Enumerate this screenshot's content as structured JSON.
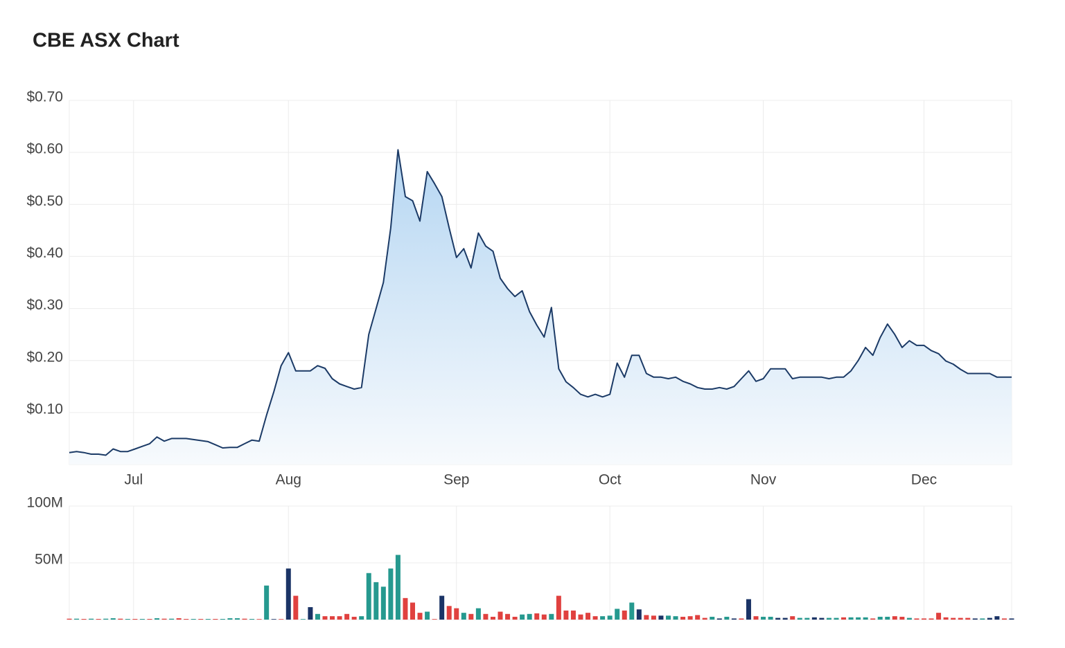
{
  "title": "CBE ASX Chart",
  "chart_data": [
    {
      "type": "area",
      "color": "#1b3a66",
      "x": [
        0,
        1,
        2,
        3,
        4,
        5,
        6,
        7,
        8,
        9,
        10,
        11,
        12,
        13,
        14,
        15,
        16,
        17,
        18,
        19,
        20,
        21,
        22,
        23,
        24,
        25,
        26,
        27,
        28,
        29,
        30,
        31,
        32,
        33,
        34,
        35,
        36,
        37,
        38,
        39,
        40,
        41,
        42,
        43,
        44,
        45,
        46,
        47,
        48,
        49,
        50,
        51,
        52,
        53,
        54,
        55,
        56,
        57,
        58,
        59,
        60,
        61,
        62,
        63,
        64,
        65,
        66,
        67,
        68,
        69,
        70,
        71,
        72,
        73,
        74,
        75,
        76,
        77,
        78,
        79,
        80,
        81,
        82,
        83,
        84,
        85,
        86,
        87,
        88,
        89,
        90,
        91,
        92,
        93,
        94,
        95,
        96,
        97,
        98,
        99,
        100,
        101,
        102,
        103,
        104,
        105,
        106,
        107,
        108,
        109,
        110,
        111,
        112,
        113,
        114,
        115,
        116,
        117,
        118,
        119,
        120,
        121,
        122,
        123,
        124,
        125,
        126,
        127,
        128,
        129
      ],
      "values": [
        0.023,
        0.025,
        0.023,
        0.02,
        0.02,
        0.018,
        0.03,
        0.025,
        0.025,
        0.03,
        0.035,
        0.04,
        0.053,
        0.045,
        0.05,
        0.05,
        0.05,
        0.048,
        0.046,
        0.044,
        0.038,
        0.032,
        0.033,
        0.033,
        0.04,
        0.047,
        0.045,
        0.095,
        0.14,
        0.19,
        0.215,
        0.18,
        0.18,
        0.18,
        0.19,
        0.185,
        0.165,
        0.155,
        0.15,
        0.145,
        0.148,
        0.25,
        0.3,
        0.35,
        0.455,
        0.605,
        0.515,
        0.507,
        0.468,
        0.563,
        0.54,
        0.515,
        0.455,
        0.398,
        0.415,
        0.378,
        0.445,
        0.42,
        0.41,
        0.358,
        0.338,
        0.323,
        0.334,
        0.294,
        0.268,
        0.245,
        0.302,
        0.184,
        0.159,
        0.148,
        0.135,
        0.13,
        0.135,
        0.13,
        0.135,
        0.195,
        0.168,
        0.21,
        0.21,
        0.175,
        0.168,
        0.168,
        0.165,
        0.168,
        0.16,
        0.155,
        0.148,
        0.145,
        0.145,
        0.148,
        0.145,
        0.15,
        0.165,
        0.18,
        0.16,
        0.165,
        0.184,
        0.184,
        0.184,
        0.165,
        0.168,
        0.168,
        0.168,
        0.168,
        0.165,
        0.168,
        0.168,
        0.18,
        0.2,
        0.225,
        0.21,
        0.244,
        0.27,
        0.25,
        0.225,
        0.238,
        0.229,
        0.229,
        0.219,
        0.213,
        0.199,
        0.193,
        0.183,
        0.175,
        0.175,
        0.175,
        0.175,
        0.168,
        0.168,
        0.168
      ],
      "xlim": [
        0,
        129
      ],
      "xticks": [
        {
          "value": 8.8,
          "label": "Jul"
        },
        {
          "value": 30,
          "label": "Aug"
        },
        {
          "value": 53,
          "label": "Sep"
        },
        {
          "value": 74,
          "label": "Oct"
        },
        {
          "value": 95,
          "label": "Nov"
        },
        {
          "value": 117,
          "label": "Dec"
        }
      ],
      "ylim": [
        0,
        0.7
      ],
      "yticks": [
        {
          "value": 0.1,
          "label": "$0.10"
        },
        {
          "value": 0.2,
          "label": "$0.20"
        },
        {
          "value": 0.3,
          "label": "$0.30"
        },
        {
          "value": 0.4,
          "label": "$0.40"
        },
        {
          "value": 0.5,
          "label": "$0.50"
        },
        {
          "value": 0.6,
          "label": "$0.60"
        },
        {
          "value": 0.7,
          "label": "$0.70"
        }
      ],
      "grid": true
    },
    {
      "type": "bar",
      "x": [
        0,
        1,
        2,
        3,
        4,
        5,
        6,
        7,
        8,
        9,
        10,
        11,
        12,
        13,
        14,
        15,
        16,
        17,
        18,
        19,
        20,
        21,
        22,
        23,
        24,
        25,
        26,
        27,
        28,
        29,
        30,
        31,
        32,
        33,
        34,
        35,
        36,
        37,
        38,
        39,
        40,
        41,
        42,
        43,
        44,
        45,
        46,
        47,
        48,
        49,
        50,
        51,
        52,
        53,
        54,
        55,
        56,
        57,
        58,
        59,
        60,
        61,
        62,
        63,
        64,
        65,
        66,
        67,
        68,
        69,
        70,
        71,
        72,
        73,
        74,
        75,
        76,
        77,
        78,
        79,
        80,
        81,
        82,
        83,
        84,
        85,
        86,
        87,
        88,
        89,
        90,
        91,
        92,
        93,
        94,
        95,
        96,
        97,
        98,
        99,
        100,
        101,
        102,
        103,
        104,
        105,
        106,
        107,
        108,
        109,
        110,
        111,
        112,
        113,
        114,
        115,
        116,
        117,
        118,
        119,
        120,
        121,
        122,
        123,
        124,
        125,
        126,
        127,
        128,
        129
      ],
      "values": [
        0.8,
        0.8,
        0.6,
        0.8,
        0.6,
        0.8,
        1.2,
        0.8,
        0.6,
        0.6,
        0.6,
        0.6,
        1.2,
        0.8,
        0.8,
        1.2,
        0.6,
        0.6,
        0.6,
        0.6,
        0.6,
        0.6,
        1.2,
        1.2,
        0.8,
        0.6,
        0.5,
        30,
        0.5,
        0.5,
        45,
        21,
        0.5,
        11,
        5,
        3,
        3,
        3,
        5,
        2.5,
        3,
        41,
        33,
        29,
        45,
        57,
        19,
        15,
        6,
        7,
        0.5,
        21,
        12,
        10,
        6,
        5,
        10,
        5,
        2.5,
        7,
        5,
        2.5,
        4.5,
        5,
        5.5,
        4.5,
        5,
        21,
        8,
        8,
        4.5,
        6,
        3,
        3,
        3.5,
        9.5,
        8,
        15,
        9,
        4,
        3.5,
        3.5,
        3.5,
        3,
        2.5,
        3,
        4,
        1.5,
        2.5,
        1,
        2.5,
        1,
        1,
        18,
        3,
        2.5,
        2.5,
        1.5,
        1.5,
        3,
        1.5,
        1.5,
        2,
        1.5,
        1.5,
        1.5,
        2,
        2,
        2,
        2,
        1,
        2.5,
        2.5,
        3,
        2.5,
        1.5,
        1,
        1,
        1,
        6,
        2,
        1.5,
        1.5,
        1.5,
        1,
        1,
        1.5,
        3,
        1,
        1
      ],
      "colors": [
        "#e0413f",
        "#26998f",
        "#e0413f",
        "#26998f",
        "#e0413f",
        "#26998f",
        "#26998f",
        "#e0413f",
        "#26998f",
        "#e0413f",
        "#26998f",
        "#e0413f",
        "#26998f",
        "#e0413f",
        "#26998f",
        "#e0413f",
        "#e0413f",
        "#26998f",
        "#e0413f",
        "#26998f",
        "#e0413f",
        "#26998f",
        "#26998f",
        "#26998f",
        "#e0413f",
        "#26998f",
        "#e0413f",
        "#26998f",
        "#1b3466",
        "#e0413f",
        "#1b3466",
        "#e0413f",
        "#26998f",
        "#1b3466",
        "#26998f",
        "#e0413f",
        "#e0413f",
        "#e0413f",
        "#e0413f",
        "#e0413f",
        "#26998f",
        "#26998f",
        "#26998f",
        "#26998f",
        "#26998f",
        "#26998f",
        "#e0413f",
        "#e0413f",
        "#e0413f",
        "#26998f",
        "#e0413f",
        "#1b3466",
        "#e0413f",
        "#e0413f",
        "#26998f",
        "#e0413f",
        "#26998f",
        "#e0413f",
        "#e0413f",
        "#e0413f",
        "#e0413f",
        "#e0413f",
        "#26998f",
        "#26998f",
        "#e0413f",
        "#e0413f",
        "#26998f",
        "#e0413f",
        "#e0413f",
        "#e0413f",
        "#e0413f",
        "#e0413f",
        "#e0413f",
        "#26998f",
        "#26998f",
        "#26998f",
        "#e0413f",
        "#26998f",
        "#1b3466",
        "#e0413f",
        "#e0413f",
        "#1b3466",
        "#26998f",
        "#26998f",
        "#e0413f",
        "#e0413f",
        "#e0413f",
        "#e0413f",
        "#26998f",
        "#1b3466",
        "#26998f",
        "#1b3466",
        "#e0413f",
        "#1b3466",
        "#e0413f",
        "#26998f",
        "#26998f",
        "#1b3466",
        "#1b3466",
        "#e0413f",
        "#26998f",
        "#26998f",
        "#1b3466",
        "#1b3466",
        "#26998f",
        "#26998f",
        "#e0413f",
        "#26998f",
        "#26998f",
        "#26998f",
        "#e0413f",
        "#26998f",
        "#26998f",
        "#e0413f",
        "#e0413f",
        "#26998f",
        "#e0413f",
        "#e0413f",
        "#e0413f",
        "#e0413f",
        "#e0413f",
        "#e0413f",
        "#e0413f",
        "#e0413f",
        "#1b3466",
        "#26998f",
        "#1b3466",
        "#1b3466",
        "#e0413f",
        "#1b3466"
      ],
      "xlim": [
        0,
        129
      ],
      "ylim": [
        0,
        100
      ],
      "yticks": [
        {
          "value": 50,
          "label": "50M"
        },
        {
          "value": 100,
          "label": "100M"
        }
      ],
      "grid": true
    }
  ]
}
